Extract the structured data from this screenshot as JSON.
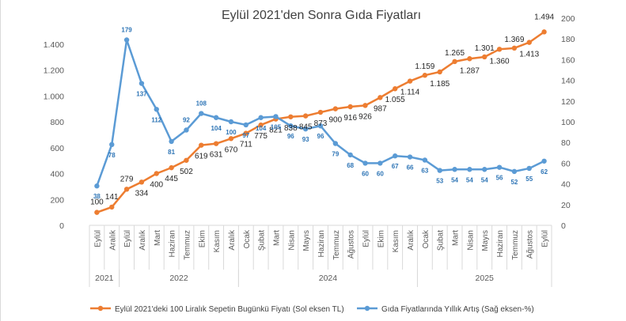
{
  "chart_data": {
    "type": "line",
    "title": "Eylül 2021'den Sonra Gıda Fiyatları",
    "categories": [
      "Eylül",
      "Aralık",
      "Eylül",
      "Aralık",
      "Mart",
      "Haziran",
      "Temmuz",
      "Ekim",
      "Kasım",
      "Aralık",
      "Ocak",
      "Şubat",
      "Mart",
      "Nisan",
      "Mayıs",
      "Haziran",
      "Temmuz",
      "Ağustos",
      "Eylül",
      "Ekim",
      "Kasım",
      "Aralık",
      "Ocak",
      "Şubat",
      "Mart",
      "Nisan",
      "Mayıs",
      "Haziran",
      "Temmuz",
      "Ağustos",
      "Eylül"
    ],
    "year_groups": [
      {
        "label": "2021",
        "start": 0,
        "end": 1
      },
      {
        "label": "2022",
        "start": 2,
        "end": 9
      },
      {
        "label": "2024",
        "start": 10,
        "end": 21
      },
      {
        "label": "2025",
        "start": 22,
        "end": 30
      }
    ],
    "series": [
      {
        "name": "Eylül 2021'deki 100 Liralık Sepetin Bugünkü  Fiyatı (Sol eksen TL)",
        "axis": "left",
        "color": "#ed7d31",
        "values": [
          100,
          141,
          279,
          334,
          400,
          445,
          502,
          619,
          631,
          670,
          711,
          775,
          821,
          838,
          845,
          873,
          900,
          916,
          926,
          987,
          1055,
          1114,
          1159,
          1185,
          1265,
          1287,
          1301,
          1360,
          1369,
          1413,
          1494
        ],
        "labels": [
          "100",
          "141",
          "279",
          "334",
          "400",
          "445",
          "502",
          "619",
          "631",
          "670",
          "711",
          "775",
          "821",
          "838",
          "845",
          "873",
          "900",
          "916",
          "926",
          "987",
          "1.055",
          "1.114",
          "1.159",
          "1.185",
          "1.265",
          "1.287",
          "1.301",
          "1.360",
          "1.369",
          "1.413",
          "1.494"
        ]
      },
      {
        "name": "Gıda Fiyatlarında Yıllık Artış (Sağ eksen-%)",
        "axis": "right",
        "color": "#5b9bd5",
        "values": [
          38,
          78,
          179,
          137,
          112,
          81,
          92,
          108,
          104,
          100,
          97,
          104,
          105,
          96,
          93,
          96,
          79,
          68,
          60,
          60,
          67,
          66,
          63,
          53,
          54,
          54,
          54,
          56,
          52,
          55,
          62
        ],
        "labels": [
          "38",
          "78",
          "179",
          "137",
          "112",
          "81",
          "92",
          "108",
          "104",
          "100",
          "97",
          "104",
          "105",
          "96",
          "93",
          "96",
          "79",
          "68",
          "60",
          "60",
          "67",
          "66",
          "63",
          "53",
          "54",
          "54",
          "54",
          "56",
          "52",
          "55",
          "62"
        ]
      }
    ],
    "y_left": {
      "min": 0,
      "max": 1600,
      "ticks": [
        0,
        200,
        400,
        600,
        800,
        1000,
        1200,
        1400
      ],
      "tick_labels": [
        "0",
        "200",
        "400",
        "600",
        "800",
        "1.000",
        "1.200",
        "1.400"
      ]
    },
    "y_right": {
      "min": 0,
      "max": 200,
      "ticks": [
        0,
        20,
        40,
        60,
        80,
        100,
        120,
        140,
        160,
        180,
        200
      ],
      "tick_labels": [
        "0",
        "20",
        "40",
        "60",
        "80",
        "100",
        "120",
        "140",
        "160",
        "180",
        "200"
      ]
    },
    "legend_position": "bottom",
    "grid": false
  }
}
